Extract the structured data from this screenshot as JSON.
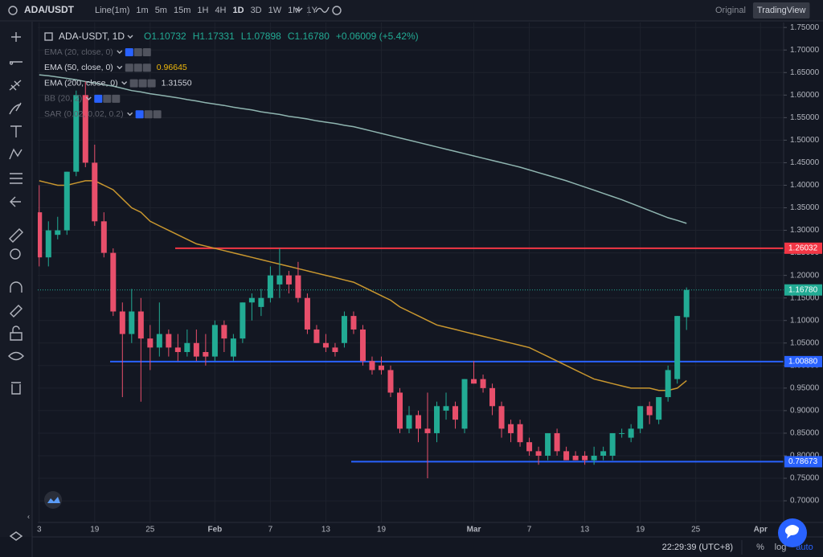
{
  "toolbar": {
    "symbol": "ADA/USDT",
    "intervals": [
      "Line(1m)",
      "1m",
      "5m",
      "15m",
      "1H",
      "4H",
      "1D",
      "3D",
      "1W",
      "1M",
      "1Y"
    ],
    "active_interval": 6,
    "views": [
      "Original",
      "TradingView"
    ],
    "active_view": 1
  },
  "chart_data": {
    "type": "candlestick",
    "title": "ADA-USDT, 1D",
    "ohlc_legend": [
      "O1.10732",
      "H1.17331",
      "L1.07898",
      "C1.16780",
      "+0.06009 (+5.42%)"
    ],
    "up_color": "#22ab94",
    "down_color": "#e84f6b",
    "categories": [
      "3",
      null,
      null,
      null,
      null,
      null,
      "19",
      null,
      null,
      null,
      null,
      null,
      "25",
      null,
      null,
      null,
      null,
      null,
      null,
      "Feb",
      null,
      null,
      null,
      null,
      null,
      "7",
      null,
      null,
      null,
      null,
      null,
      "13",
      null,
      null,
      null,
      null,
      null,
      "19",
      null,
      null,
      null,
      null,
      null,
      null,
      null,
      null,
      null,
      "Mar",
      null,
      null,
      null,
      null,
      null,
      "7",
      null,
      null,
      null,
      null,
      null,
      "13",
      null,
      null,
      null,
      null,
      null,
      "19",
      null,
      null,
      null,
      null,
      null,
      "25",
      null,
      null,
      null,
      null,
      null,
      null,
      "Apr",
      null,
      null
    ],
    "open": [
      1.34,
      1.24,
      1.29,
      1.3,
      1.43,
      1.6,
      1.45,
      1.32,
      1.25,
      1.12,
      1.07,
      1.12,
      1.06,
      1.04,
      1.07,
      1.04,
      1.03,
      1.05,
      1.03,
      1.02,
      1.09,
      1.02,
      1.06,
      1.14,
      1.13,
      1.15,
      1.18,
      1.2,
      1.2,
      1.15,
      1.08,
      1.05,
      1.04,
      1.05,
      1.11,
      1.08,
      1.01,
      1.0,
      0.99,
      0.94,
      0.86,
      0.89,
      0.86,
      0.85,
      0.9,
      0.91,
      0.86,
      0.97,
      0.97,
      0.95,
      0.91,
      0.87,
      0.87,
      0.83,
      0.81,
      0.8,
      0.85,
      0.81,
      0.8,
      0.8,
      0.79,
      0.8,
      0.8,
      0.85,
      0.84,
      0.86,
      0.91,
      0.88,
      0.93,
      0.97,
      1.10732,
      null,
      null,
      null,
      null,
      null,
      null,
      null,
      null,
      null,
      null
    ],
    "high": [
      1.4,
      1.32,
      1.33,
      1.43,
      1.61,
      1.63,
      1.49,
      1.34,
      1.26,
      1.14,
      1.17,
      1.15,
      1.09,
      1.14,
      1.08,
      1.07,
      1.08,
      1.08,
      1.07,
      1.1,
      1.1,
      1.07,
      1.14,
      1.16,
      1.17,
      1.22,
      1.26,
      1.21,
      1.23,
      1.16,
      1.09,
      1.07,
      1.05,
      1.12,
      1.12,
      1.09,
      1.02,
      1.02,
      1.0,
      0.95,
      0.91,
      0.9,
      0.94,
      0.92,
      0.94,
      0.92,
      0.97,
      1.01,
      0.98,
      0.96,
      0.92,
      0.88,
      0.88,
      0.84,
      0.82,
      0.85,
      0.86,
      0.82,
      0.81,
      0.81,
      0.82,
      0.82,
      0.85,
      0.86,
      0.87,
      0.91,
      0.92,
      0.93,
      1.0,
      1.11,
      1.17331,
      null,
      null,
      null,
      null,
      null,
      null,
      null,
      null,
      null,
      null
    ],
    "low": [
      1.22,
      1.22,
      1.28,
      1.29,
      1.42,
      1.44,
      1.31,
      1.24,
      1.11,
      0.93,
      1.05,
      0.92,
      0.99,
      1.02,
      1.02,
      1.01,
      1.02,
      1.01,
      1.0,
      1.01,
      1.03,
      1.01,
      1.05,
      1.1,
      1.11,
      1.14,
      1.15,
      1.16,
      1.14,
      1.07,
      1.05,
      1.03,
      1.02,
      1.04,
      1.07,
      1.0,
      0.98,
      0.98,
      0.93,
      0.85,
      0.85,
      0.83,
      0.75,
      0.83,
      0.88,
      0.86,
      0.85,
      0.96,
      0.94,
      0.89,
      0.84,
      0.83,
      0.82,
      0.8,
      0.78,
      0.79,
      0.8,
      0.79,
      0.79,
      0.78,
      0.78,
      0.79,
      0.79,
      0.84,
      0.83,
      0.85,
      0.87,
      0.87,
      0.92,
      0.96,
      1.07898,
      null,
      null,
      null,
      null,
      null,
      null,
      null,
      null,
      null,
      null
    ],
    "close": [
      1.24,
      1.3,
      1.3,
      1.43,
      1.6,
      1.45,
      1.32,
      1.25,
      1.12,
      1.07,
      1.12,
      1.06,
      1.04,
      1.07,
      1.04,
      1.03,
      1.05,
      1.02,
      1.02,
      1.09,
      1.06,
      1.06,
      1.14,
      1.15,
      1.15,
      1.2,
      1.2,
      1.18,
      1.15,
      1.08,
      1.05,
      1.04,
      1.03,
      1.11,
      1.08,
      1.01,
      0.99,
      0.99,
      0.94,
      0.86,
      0.89,
      0.86,
      0.85,
      0.91,
      0.91,
      0.88,
      0.97,
      0.96,
      0.95,
      0.91,
      0.86,
      0.85,
      0.83,
      0.81,
      0.8,
      0.85,
      0.81,
      0.79,
      0.79,
      0.79,
      0.8,
      0.81,
      0.85,
      0.85,
      0.86,
      0.91,
      0.89,
      0.93,
      0.99,
      1.11,
      1.1678,
      null,
      null,
      null,
      null,
      null,
      null,
      null,
      null,
      null,
      null
    ],
    "last_price_label": "1.16780",
    "indicators": [
      {
        "name": "EMA (20, close, 0)",
        "hidden": true
      },
      {
        "name": "EMA (50, close, 0)",
        "color": "#c9972f",
        "value_label": "0.96645",
        "values": [
          1.41,
          1.405,
          1.4,
          1.4,
          1.405,
          1.41,
          1.41,
          1.4,
          1.39,
          1.37,
          1.35,
          1.34,
          1.32,
          1.31,
          1.3,
          1.29,
          1.28,
          1.27,
          1.265,
          1.26,
          1.255,
          1.25,
          1.245,
          1.24,
          1.235,
          1.23,
          1.225,
          1.22,
          1.215,
          1.21,
          1.205,
          1.2,
          1.195,
          1.19,
          1.185,
          1.175,
          1.165,
          1.155,
          1.145,
          1.13,
          1.12,
          1.11,
          1.1,
          1.09,
          1.085,
          1.08,
          1.075,
          1.07,
          1.065,
          1.06,
          1.055,
          1.05,
          1.045,
          1.04,
          1.03,
          1.02,
          1.01,
          1.0,
          0.99,
          0.98,
          0.97,
          0.965,
          0.96,
          0.955,
          0.95,
          0.95,
          0.95,
          0.945,
          0.945,
          0.95,
          0.96645,
          null,
          null,
          null,
          null,
          null,
          null,
          null,
          null,
          null,
          null
        ]
      },
      {
        "name": "EMA (200, close, 0)",
        "color": "#8fb5b0",
        "value_label": "1.31550",
        "values": [
          1.645,
          1.643,
          1.64,
          1.637,
          1.634,
          1.63,
          1.627,
          1.623,
          1.62,
          1.615,
          1.61,
          1.607,
          1.603,
          1.6,
          1.597,
          1.594,
          1.59,
          1.587,
          1.583,
          1.58,
          1.577,
          1.573,
          1.57,
          1.567,
          1.563,
          1.56,
          1.557,
          1.553,
          1.55,
          1.547,
          1.543,
          1.54,
          1.537,
          1.533,
          1.53,
          1.525,
          1.52,
          1.515,
          1.51,
          1.505,
          1.5,
          1.495,
          1.49,
          1.485,
          1.48,
          1.475,
          1.47,
          1.465,
          1.46,
          1.455,
          1.45,
          1.445,
          1.44,
          1.434,
          1.428,
          1.422,
          1.416,
          1.41,
          1.403,
          1.396,
          1.389,
          1.382,
          1.375,
          1.368,
          1.36,
          1.352,
          1.344,
          1.336,
          1.328,
          1.322,
          1.3155,
          null,
          null,
          null,
          null,
          null,
          null,
          null,
          null,
          null,
          null
        ]
      },
      {
        "name": "BB (20, 2)",
        "hidden": true
      },
      {
        "name": "SAR (0.02, 0.02, 0.2)",
        "hidden": true
      }
    ],
    "price_lines": [
      {
        "value": 1.26032,
        "label": "1.26032",
        "color": "#f23645"
      },
      {
        "value": 1.0088,
        "label": "1.00880",
        "color": "#2962ff"
      },
      {
        "value": 0.78673,
        "label": "0.78673",
        "color": "#2962ff"
      }
    ],
    "ylim": [
      0.652,
      1.761
    ],
    "yticks": [
      {
        "value": 0.7,
        "label": "0.70000"
      },
      {
        "value": 0.75,
        "label": "0.75000"
      },
      {
        "value": 0.8,
        "label": "0.80000"
      },
      {
        "value": 0.85,
        "label": "0.85000"
      },
      {
        "value": 0.9,
        "label": "0.90000"
      },
      {
        "value": 0.95,
        "label": "0.95000"
      },
      {
        "value": 1.0,
        "label": "1.00000"
      },
      {
        "value": 1.05,
        "label": "1.05000"
      },
      {
        "value": 1.1,
        "label": "1.10000"
      },
      {
        "value": 1.15,
        "label": "1.15000"
      },
      {
        "value": 1.2,
        "label": "1.20000"
      },
      {
        "value": 1.25,
        "label": "1.25000"
      },
      {
        "value": 1.3,
        "label": "1.30000"
      },
      {
        "value": 1.35,
        "label": "1.35000"
      },
      {
        "value": 1.4,
        "label": "1.40000"
      },
      {
        "value": 1.45,
        "label": "1.45000"
      },
      {
        "value": 1.5,
        "label": "1.50000"
      },
      {
        "value": 1.55,
        "label": "1.55000"
      },
      {
        "value": 1.6,
        "label": "1.60000"
      },
      {
        "value": 1.65,
        "label": "1.65000"
      },
      {
        "value": 1.7,
        "label": "1.70000"
      },
      {
        "value": 1.75,
        "label": "1.75000"
      }
    ],
    "grid": true
  },
  "status": {
    "time": "22:29:39 (UTC+8)",
    "buttons": [
      "%",
      "log",
      "auto"
    ]
  }
}
